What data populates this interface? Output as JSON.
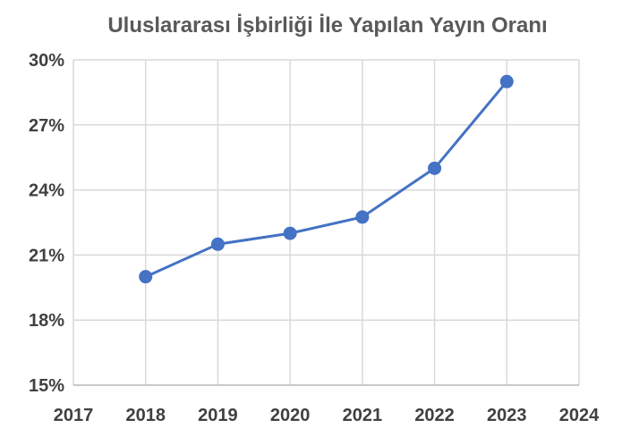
{
  "chart_data": {
    "type": "line",
    "title": "Uluslararası İşbirliği İle Yapılan Yayın Oranı",
    "xlabel": "",
    "ylabel": "",
    "xlim": [
      2017,
      2024
    ],
    "ylim": [
      15,
      30
    ],
    "x_ticks": [
      2017,
      2018,
      2019,
      2020,
      2021,
      2022,
      2023,
      2024
    ],
    "y_ticks": [
      15,
      18,
      21,
      24,
      27,
      30
    ],
    "y_tick_labels": [
      "15%",
      "18%",
      "21%",
      "24%",
      "27%",
      "30%"
    ],
    "x_tick_labels": [
      "2017",
      "2018",
      "2019",
      "2020",
      "2021",
      "2022",
      "2023",
      "2024"
    ],
    "grid": true,
    "series_color": "#4472c4",
    "series": [
      {
        "x": [
          2018,
          2019,
          2020,
          2021,
          2022,
          2023
        ],
        "values": [
          20.0,
          21.5,
          22.0,
          22.75,
          25.0,
          29.0
        ]
      }
    ]
  }
}
